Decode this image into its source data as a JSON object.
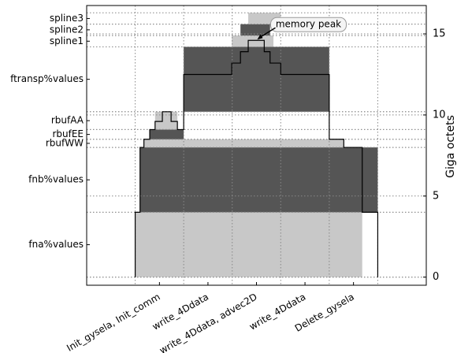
{
  "chart_data": {
    "type": "memory-timeline",
    "y_label": "Giga octets",
    "xlim": [
      0,
      7
    ],
    "ylim": [
      -0.5,
      16.75
    ],
    "yticks": [
      0,
      5,
      10,
      15
    ],
    "xgrid": [
      1,
      2,
      3,
      4,
      5,
      6
    ],
    "categories": [
      "Init_gysela, Init_comm",
      "write_4Ddata",
      "write_4Ddata, advec2D",
      "write_4Ddata",
      "Delete_gysela"
    ],
    "category_x": [
      1.5,
      2.5,
      3.5,
      4.5,
      5.5
    ],
    "dark_color": "#555555",
    "light_color": "#c8c8c8",
    "variables": [
      {
        "name": "fna%values",
        "band": [
          0,
          4
        ],
        "blocks": [
          {
            "x": [
              1.0,
              5.68
            ],
            "shade": "light"
          }
        ]
      },
      {
        "name": "fnb%values",
        "band": [
          4,
          8
        ],
        "blocks": [
          {
            "x": [
              1.1,
              6.0
            ],
            "shade": "dark"
          }
        ]
      },
      {
        "name": "rbufWW",
        "band": [
          8,
          8.5
        ],
        "blocks": [
          {
            "x": [
              1.18,
              5.3
            ],
            "shade": "light"
          }
        ]
      },
      {
        "name": "rbufEE",
        "band": [
          8.5,
          9.1
        ],
        "blocks": [
          {
            "x": [
              1.3,
              2.0
            ],
            "shade": "dark"
          }
        ]
      },
      {
        "name": "rbufAA",
        "band": [
          9.1,
          10.2
        ],
        "blocks": [
          {
            "x": [
              1.41,
              1.87
            ],
            "shade": "light"
          }
        ]
      },
      {
        "name": "ftransp%values",
        "band": [
          10.2,
          14.2
        ],
        "blocks": [
          {
            "x": [
              2.0,
              5.0
            ],
            "shade": "dark"
          }
        ]
      },
      {
        "name": "spline1",
        "band": [
          14.2,
          14.9
        ],
        "blocks": [
          {
            "x": [
              2.99,
              3.85
            ],
            "shade": "light"
          }
        ]
      },
      {
        "name": "spline2",
        "band": [
          14.9,
          15.6
        ],
        "blocks": [
          {
            "x": [
              3.17,
              3.78
            ],
            "shade": "dark"
          }
        ]
      },
      {
        "name": "spline3",
        "band": [
          15.6,
          16.3
        ],
        "blocks": [
          {
            "x": [
              3.33,
              4.0
            ],
            "shade": "light"
          }
        ]
      }
    ],
    "memory_curve": {
      "x": [
        1.0,
        1.0,
        1.1,
        1.18,
        1.3,
        1.41,
        1.56,
        1.74,
        1.87,
        2.0,
        2.99,
        3.17,
        3.33,
        3.66,
        3.78,
        4.0,
        5.0,
        5.3,
        5.68,
        6.0
      ],
      "values": [
        0,
        4.0,
        8.0,
        8.5,
        9.1,
        9.6,
        10.2,
        9.6,
        9.1,
        12.5,
        13.2,
        13.9,
        14.6,
        13.9,
        13.2,
        12.5,
        8.5,
        8.0,
        4.0,
        0
      ]
    },
    "annotation": {
      "text": "memory peak",
      "x": 3.5,
      "y": 14.6
    }
  }
}
